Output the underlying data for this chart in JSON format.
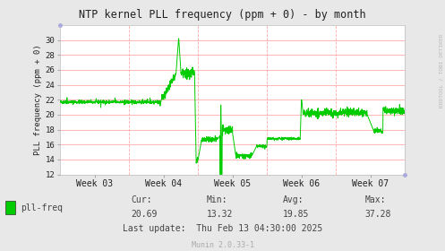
{
  "title": "NTP kernel PLL frequency (ppm + 0) - by month",
  "ylabel": "PLL frequency (ppm + 0)",
  "background_color": "#e8e8e8",
  "plot_bg_color": "#ffffff",
  "line_color": "#00cc00",
  "grid_h_color": "#ffaaaa",
  "grid_v_color": "#ffaaaa",
  "ylim": [
    12,
    32
  ],
  "yticks": [
    12,
    14,
    16,
    18,
    20,
    22,
    24,
    26,
    28,
    30
  ],
  "week_labels": [
    "Week 03",
    "Week 04",
    "Week 05",
    "Week 06",
    "Week 07"
  ],
  "cur": "20.69",
  "min_val": "13.32",
  "avg": "19.85",
  "max_val": "37.28",
  "last_update": "Thu Feb 13 04:30:00 2025",
  "legend_label": "pll-freq",
  "legend_color": "#00cc00",
  "right_label": "RRDTOOL / TOBI OETIKER",
  "footer": "Munin 2.0.33-1",
  "title_color": "#222222",
  "tick_label_color": "#222222",
  "stats_color": "#444444",
  "footer_color": "#aaaaaa"
}
